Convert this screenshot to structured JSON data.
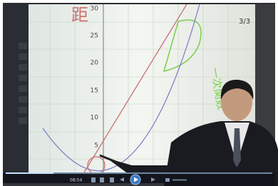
{
  "whiteboard": {
    "heading": "距",
    "axis_labels": [
      "30",
      "25",
      "20",
      "15",
      "10",
      "5"
    ],
    "page": "3/3",
    "annotation": "一次関数"
  },
  "player": {
    "time": "08:54"
  }
}
